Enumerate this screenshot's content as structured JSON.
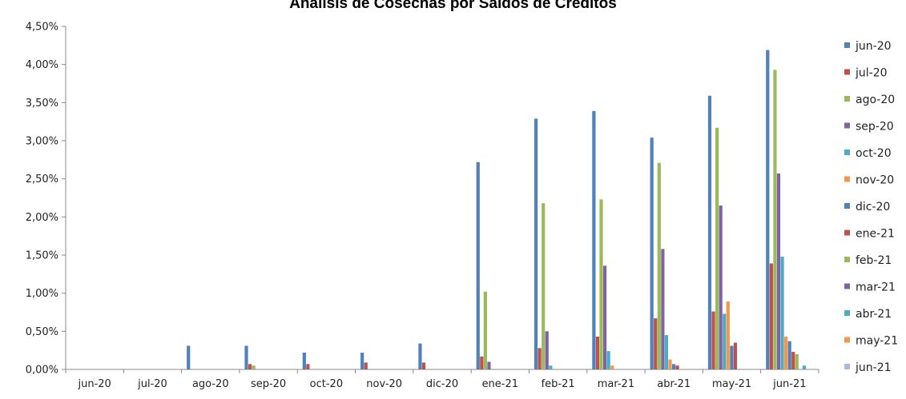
{
  "chart_data": {
    "type": "bar",
    "title": "Análisis de Cosechas por Saldos de Créditos",
    "xlabel": "",
    "ylabel": "",
    "ylim": [
      0,
      0.045
    ],
    "y_ticks": [
      "0,00%",
      "0,50%",
      "1,00%",
      "1,50%",
      "2,00%",
      "2,50%",
      "3,00%",
      "3,50%",
      "4,00%",
      "4,50%"
    ],
    "y_tick_values": [
      0,
      0.005,
      0.01,
      0.015,
      0.02,
      0.025,
      0.03,
      0.035,
      0.04,
      0.045
    ],
    "grid": false,
    "legend_position": "right",
    "categories": [
      "jun-20",
      "jul-20",
      "ago-20",
      "sep-20",
      "oct-20",
      "nov-20",
      "dic-20",
      "ene-21",
      "feb-21",
      "mar-21",
      "abr-21",
      "may-21",
      "jun-21"
    ],
    "series": [
      {
        "name": "jun-20",
        "color": "#4F81BD",
        "values": [
          0,
          0,
          0.0031,
          0.0031,
          0.0022,
          0.0022,
          0.0034,
          0.0272,
          0.0329,
          0.0339,
          0.0304,
          0.0359,
          0.0419
        ]
      },
      {
        "name": "jul-20",
        "color": "#C0504D",
        "values": [
          null,
          0,
          0,
          0.0007,
          0.0007,
          0.0009,
          0.0009,
          0.0017,
          0.0028,
          0.0043,
          0.0067,
          0.0076,
          0.0139
        ]
      },
      {
        "name": "ago-20",
        "color": "#9BBB59",
        "values": [
          null,
          null,
          0,
          0.0005,
          0,
          0,
          0,
          0.0102,
          0.0218,
          0.0223,
          0.0271,
          0.0317,
          0.0393
        ]
      },
      {
        "name": "sep-20",
        "color": "#8064A2",
        "values": [
          null,
          null,
          null,
          0,
          0,
          0,
          0,
          0.001,
          0.005,
          0.0136,
          0.0158,
          0.0215,
          0.0257
        ]
      },
      {
        "name": "oct-20",
        "color": "#4BACC6",
        "values": [
          null,
          null,
          null,
          null,
          0,
          0,
          0,
          0,
          0.0005,
          0.0024,
          0.0045,
          0.0073,
          0.0148
        ]
      },
      {
        "name": "nov-20",
        "color": "#F79646",
        "values": [
          null,
          null,
          null,
          null,
          null,
          0,
          0,
          0,
          0,
          0.0005,
          0.0013,
          0.0089,
          0.0043
        ]
      },
      {
        "name": "dic-20",
        "color": "#4F81BD",
        "values": [
          null,
          null,
          null,
          null,
          null,
          null,
          0,
          0,
          0,
          0,
          0.0007,
          0.0031,
          0.0037
        ]
      },
      {
        "name": "ene-21",
        "color": "#C0504D",
        "values": [
          null,
          null,
          null,
          null,
          null,
          null,
          null,
          0,
          0,
          0,
          0.0005,
          0.0035,
          0.0023
        ]
      },
      {
        "name": "feb-21",
        "color": "#9BBB59",
        "values": [
          null,
          null,
          null,
          null,
          null,
          null,
          null,
          null,
          0,
          0,
          0,
          0,
          0.002
        ]
      },
      {
        "name": "mar-21",
        "color": "#8064A2",
        "values": [
          null,
          null,
          null,
          null,
          null,
          null,
          null,
          null,
          null,
          0,
          0,
          0,
          0
        ]
      },
      {
        "name": "abr-21",
        "color": "#4BACC6",
        "values": [
          null,
          null,
          null,
          null,
          null,
          null,
          null,
          null,
          null,
          null,
          0,
          0,
          0.0005
        ]
      },
      {
        "name": "may-21",
        "color": "#F79646",
        "values": [
          null,
          null,
          null,
          null,
          null,
          null,
          null,
          null,
          null,
          null,
          null,
          0,
          0
        ]
      },
      {
        "name": "jun-21",
        "color": "#A9B8E0",
        "values": [
          null,
          null,
          null,
          null,
          null,
          null,
          null,
          null,
          null,
          null,
          null,
          null,
          0
        ]
      }
    ]
  }
}
